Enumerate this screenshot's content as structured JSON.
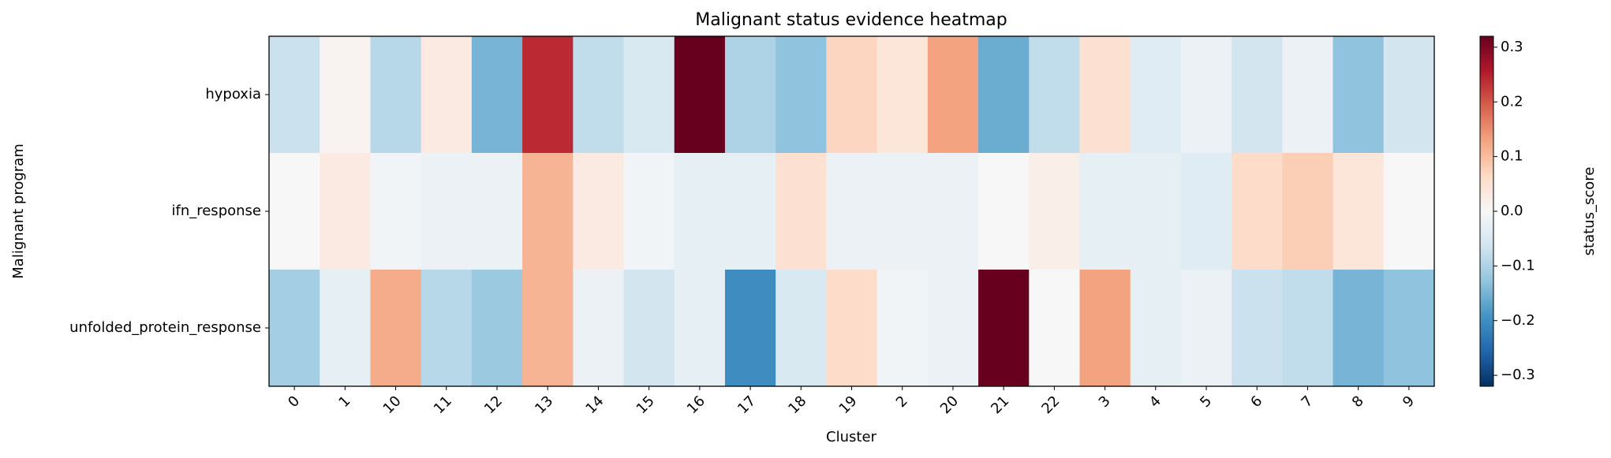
{
  "chart_data": {
    "type": "heatmap",
    "title": "Malignant status evidence heatmap",
    "x_label": "Cluster",
    "y_label": "Malignant program",
    "colorbar_label": "status_score",
    "x": [
      "0",
      "1",
      "10",
      "11",
      "12",
      "13",
      "14",
      "15",
      "16",
      "17",
      "18",
      "19",
      "2",
      "20",
      "21",
      "22",
      "3",
      "4",
      "5",
      "6",
      "7",
      "8",
      "9"
    ],
    "y": [
      "hypoxia",
      "ifn_response",
      "unfolded_protein_response"
    ],
    "z": [
      [
        -0.07,
        0.01,
        -0.09,
        0.03,
        -0.15,
        0.24,
        -0.08,
        -0.05,
        0.32,
        -0.1,
        -0.13,
        0.07,
        0.04,
        0.13,
        -0.16,
        -0.08,
        0.05,
        -0.04,
        -0.02,
        -0.06,
        -0.02,
        -0.13,
        -0.06
      ],
      [
        0.0,
        0.03,
        -0.01,
        -0.02,
        -0.02,
        0.11,
        0.03,
        -0.01,
        -0.03,
        -0.03,
        0.05,
        -0.02,
        -0.02,
        -0.02,
        0.0,
        0.02,
        -0.03,
        -0.03,
        -0.04,
        0.06,
        0.08,
        0.04,
        0.0
      ],
      [
        -0.11,
        -0.03,
        0.12,
        -0.09,
        -0.12,
        0.11,
        -0.02,
        -0.06,
        -0.03,
        -0.2,
        -0.05,
        0.06,
        -0.01,
        -0.02,
        0.32,
        0.0,
        0.13,
        -0.03,
        -0.02,
        -0.07,
        -0.08,
        -0.15,
        -0.13
      ]
    ],
    "zlim": [
      -0.32,
      0.32
    ],
    "zticks": [
      {
        "value": -0.3,
        "label": "−0.3"
      },
      {
        "value": -0.2,
        "label": "−0.2"
      },
      {
        "value": -0.1,
        "label": "−0.1"
      },
      {
        "value": 0,
        "label": "0.0"
      },
      0.1,
      0.2,
      0.3
    ],
    "colormap": [
      "#053061",
      "#2166ac",
      "#4393c3",
      "#92c5de",
      "#d1e5f0",
      "#f7f7f7",
      "#fddbc7",
      "#f4a582",
      "#d6604d",
      "#b2182b",
      "#67001f"
    ]
  }
}
